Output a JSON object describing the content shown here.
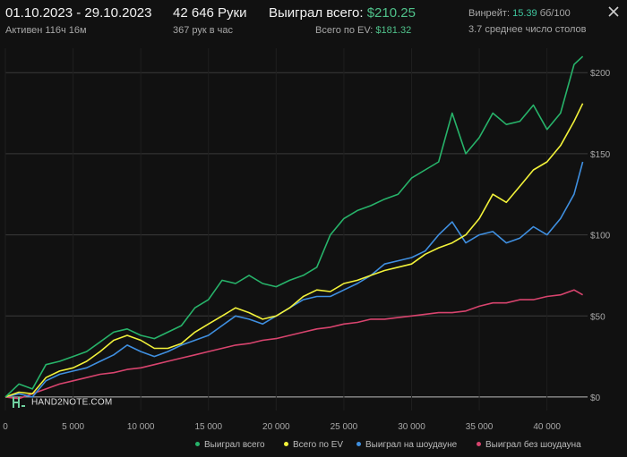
{
  "header": {
    "date_range": "01.10.2023 - 29.10.2023",
    "active": "Активен 116ч 16м",
    "hands": "42 646 Руки",
    "hands_rate": "367 рук в час",
    "won_total_label": "Выиграл всего:",
    "won_total_value": "$210.25",
    "ev_total_label": "Всего по EV:",
    "ev_total_value": "$181.32",
    "winrate_label": "Винрейт:",
    "winrate_value": "15.39",
    "winrate_unit": "бб/100",
    "tables": "3.7 среднее число столов"
  },
  "logo": {
    "text": "HAND2NOTE.COM"
  },
  "legend": [
    {
      "label": "Выиграл всего",
      "color": "#27b36a"
    },
    {
      "label": "Всего по EV",
      "color": "#f2f23a"
    },
    {
      "label": "Выиграл на шоудауне",
      "color": "#3f8fe0"
    },
    {
      "label": "Выиграл без шоудауна",
      "color": "#d8446e"
    }
  ],
  "chart_data": {
    "type": "line",
    "xlim": [
      0,
      43000
    ],
    "ylim": [
      -5,
      215
    ],
    "x_ticks": [
      0,
      5000,
      10000,
      15000,
      20000,
      25000,
      30000,
      35000,
      40000
    ],
    "x_tick_labels": [
      "0",
      "5 000",
      "10 000",
      "15 000",
      "20 000",
      "25 000",
      "30 000",
      "35 000",
      "40 000"
    ],
    "y_ticks": [
      0,
      50,
      100,
      150,
      200
    ],
    "y_tick_labels": [
      "$0",
      "$50",
      "$100",
      "$150",
      "$200"
    ],
    "x": [
      0,
      1000,
      2000,
      3000,
      4000,
      5000,
      6000,
      7000,
      8000,
      9000,
      10000,
      11000,
      12000,
      13000,
      14000,
      15000,
      16000,
      17000,
      18000,
      19000,
      20000,
      21000,
      22000,
      23000,
      24000,
      25000,
      26000,
      27000,
      28000,
      29000,
      30000,
      31000,
      32000,
      33000,
      34000,
      35000,
      36000,
      37000,
      38000,
      39000,
      40000,
      41000,
      42000,
      42646
    ],
    "series": [
      {
        "name": "Выиграл всего",
        "color": "#27b36a",
        "values": [
          0,
          8,
          5,
          20,
          22,
          25,
          28,
          34,
          40,
          42,
          38,
          36,
          40,
          44,
          55,
          60,
          72,
          70,
          75,
          70,
          68,
          72,
          75,
          80,
          100,
          110,
          115,
          118,
          122,
          125,
          135,
          140,
          145,
          175,
          150,
          160,
          175,
          168,
          170,
          180,
          165,
          175,
          205,
          210
        ]
      },
      {
        "name": "Всего по EV",
        "color": "#f2f23a",
        "values": [
          0,
          3,
          2,
          12,
          16,
          18,
          22,
          28,
          35,
          38,
          35,
          30,
          30,
          33,
          40,
          45,
          50,
          55,
          52,
          48,
          50,
          55,
          62,
          66,
          65,
          70,
          72,
          75,
          78,
          80,
          82,
          88,
          92,
          95,
          100,
          110,
          125,
          120,
          130,
          140,
          145,
          155,
          170,
          181
        ]
      },
      {
        "name": "Выиграл на шоудауне",
        "color": "#3f8fe0",
        "values": [
          0,
          2,
          0,
          10,
          14,
          16,
          18,
          22,
          26,
          32,
          28,
          25,
          28,
          32,
          35,
          38,
          44,
          50,
          48,
          45,
          50,
          55,
          60,
          62,
          62,
          66,
          70,
          75,
          82,
          84,
          86,
          90,
          100,
          108,
          95,
          100,
          102,
          95,
          98,
          105,
          100,
          110,
          125,
          145
        ]
      },
      {
        "name": "Выиграл без шоудауна",
        "color": "#d8446e",
        "values": [
          0,
          -1,
          2,
          5,
          8,
          10,
          12,
          14,
          15,
          17,
          18,
          20,
          22,
          24,
          26,
          28,
          30,
          32,
          33,
          35,
          36,
          38,
          40,
          42,
          43,
          45,
          46,
          48,
          48,
          49,
          50,
          51,
          52,
          52,
          53,
          56,
          58,
          58,
          60,
          60,
          62,
          63,
          66,
          63
        ]
      }
    ]
  }
}
